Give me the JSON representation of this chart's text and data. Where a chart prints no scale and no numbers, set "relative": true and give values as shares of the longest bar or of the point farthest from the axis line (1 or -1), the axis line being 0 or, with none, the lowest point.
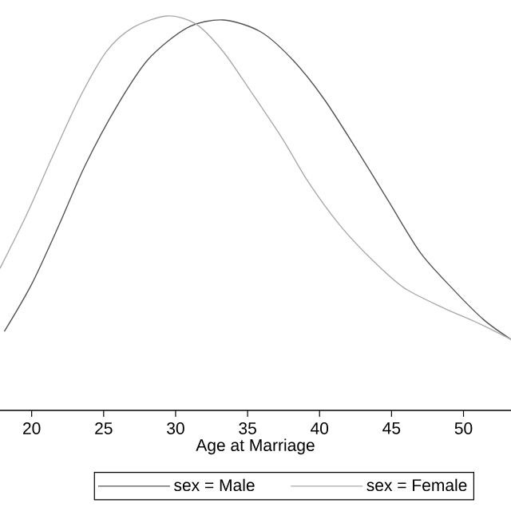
{
  "chart_data": {
    "type": "line",
    "relative": true,
    "xlabel": "Age at Marriage",
    "xlim": [
      17.8,
      53.3
    ],
    "xticks": [
      20,
      25,
      30,
      35,
      40,
      45,
      50
    ],
    "legend": "bottom",
    "series": [
      {
        "name": "sex = Male",
        "color": "#555555",
        "x": [
          18.1,
          20.0,
          21.9,
          23.7,
          25.9,
          28.1,
          30.8,
          33.3,
          35.9,
          38.1,
          40.3,
          42.6,
          44.8,
          47.0,
          49.2,
          51.4,
          53.3
        ],
        "values": [
          0.2,
          0.32,
          0.47,
          0.62,
          0.77,
          0.89,
          0.97,
          0.99,
          0.96,
          0.89,
          0.79,
          0.66,
          0.53,
          0.4,
          0.31,
          0.23,
          0.18
        ]
      },
      {
        "name": "sex = Female",
        "color": "#aaaaaa",
        "x": [
          17.8,
          19.7,
          21.4,
          23.3,
          25.2,
          27.0,
          29.4,
          31.4,
          33.3,
          35.2,
          37.4,
          39.2,
          41.4,
          43.7,
          45.9,
          48.6,
          51.1,
          53.3
        ],
        "values": [
          0.36,
          0.5,
          0.64,
          0.79,
          0.91,
          0.97,
          1.0,
          0.98,
          0.91,
          0.81,
          0.69,
          0.58,
          0.47,
          0.38,
          0.31,
          0.26,
          0.22,
          0.18
        ]
      }
    ]
  }
}
